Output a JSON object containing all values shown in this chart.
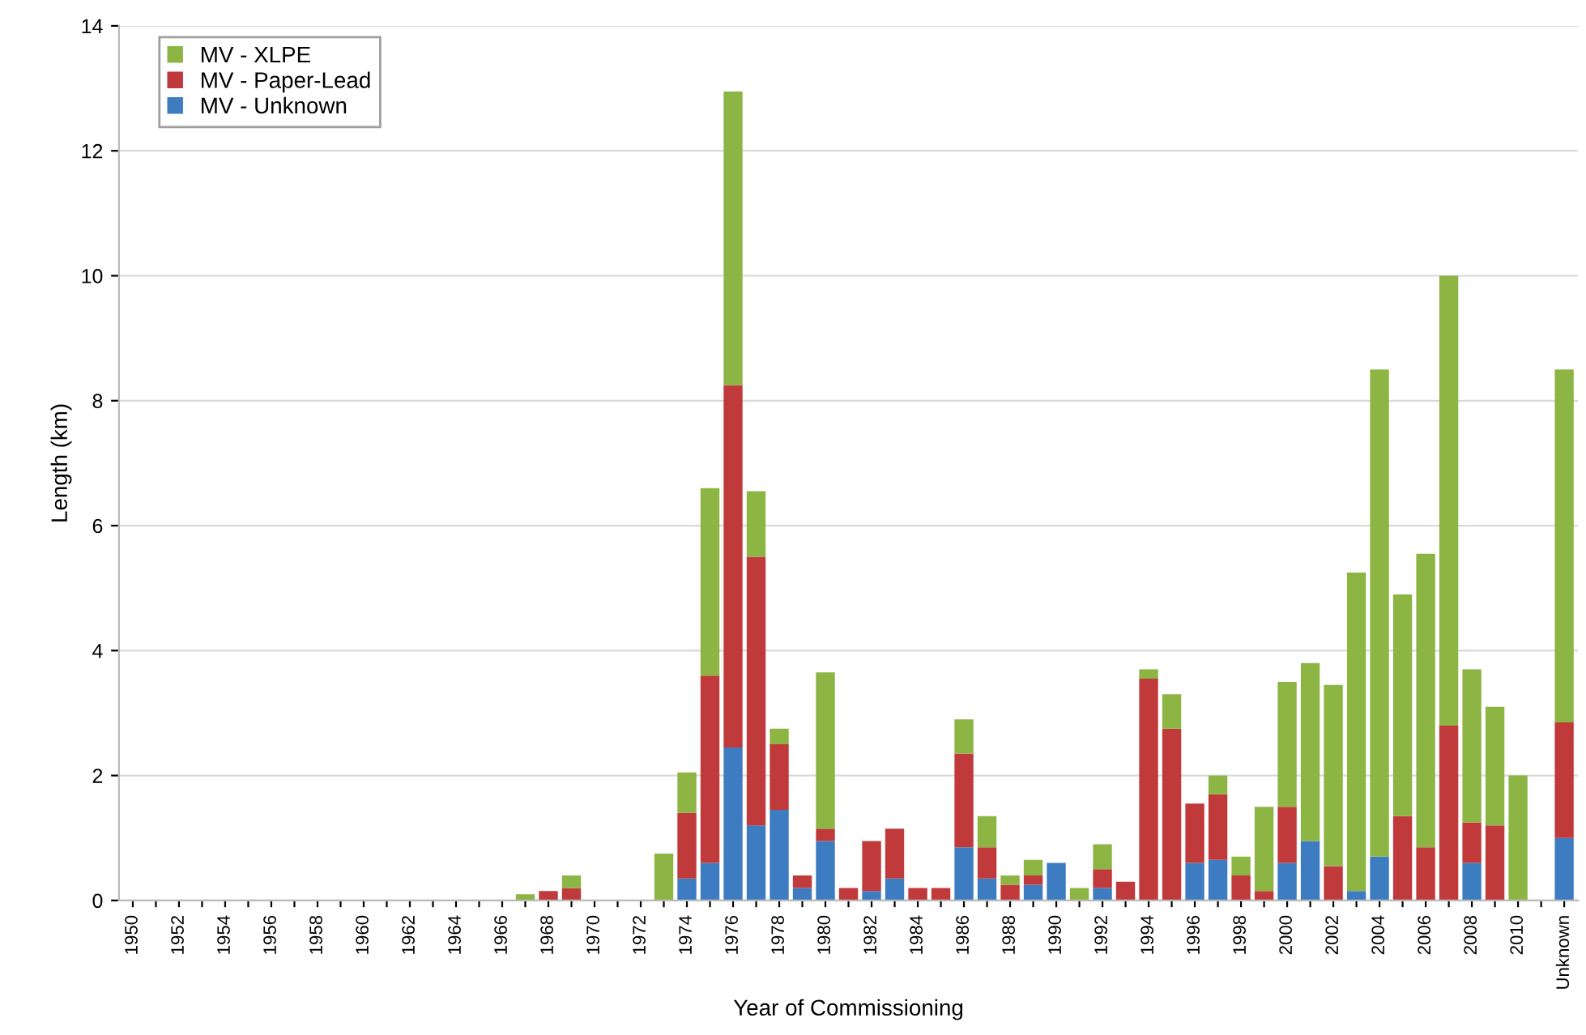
{
  "chart_data": {
    "type": "bar",
    "stacked": true,
    "xlabel": "Year of Commissioning",
    "ylabel": "Length (km)",
    "categories": [
      "1950",
      null,
      "1952",
      null,
      "1954",
      null,
      "1956",
      null,
      "1958",
      null,
      "1960",
      null,
      "1962",
      null,
      "1964",
      null,
      "1966",
      null,
      "1968",
      null,
      "1970",
      null,
      "1972",
      null,
      "1974",
      null,
      "1976",
      null,
      "1978",
      null,
      "1980",
      null,
      "1982",
      null,
      "1984",
      null,
      "1986",
      null,
      "1988",
      null,
      "1990",
      null,
      "1992",
      null,
      "1994",
      null,
      "1996",
      null,
      "1998",
      null,
      "2000",
      null,
      "2002",
      null,
      "2004",
      null,
      "2006",
      null,
      "2008",
      null,
      "2010",
      null,
      "Unknown"
    ],
    "series": [
      {
        "name": "MV - Unknown",
        "color": "#3d7cc0",
        "values": [
          0,
          0,
          0,
          0,
          0,
          0,
          0,
          0,
          0,
          0,
          0,
          0,
          0,
          0,
          0,
          0,
          0,
          0,
          0,
          0,
          0,
          0,
          0,
          0,
          0.35,
          0.6,
          2.45,
          1.2,
          1.45,
          0.2,
          0.95,
          0,
          0.15,
          0.35,
          0,
          0,
          0.85,
          0.35,
          0,
          0.25,
          0.6,
          0,
          0.2,
          0,
          0,
          0,
          0.6,
          0.65,
          0,
          0,
          0.6,
          0.95,
          0,
          0.15,
          0.7,
          0,
          0,
          0,
          0.6,
          0,
          0,
          null,
          1.0
        ]
      },
      {
        "name": "MV - Paper-Lead",
        "color": "#c0393b",
        "values": [
          0,
          0,
          0,
          0,
          0,
          0,
          0,
          0,
          0,
          0,
          0,
          0,
          0,
          0,
          0,
          0,
          0,
          0,
          0.15,
          0.2,
          0,
          0,
          0,
          0,
          1.05,
          3.0,
          5.8,
          4.3,
          1.05,
          0.2,
          0.2,
          0.2,
          0.8,
          0.8,
          0.2,
          0.2,
          1.5,
          0.5,
          0.25,
          0.15,
          0,
          0,
          0.3,
          0.3,
          3.55,
          2.75,
          0.95,
          1.05,
          0.4,
          0.15,
          0.9,
          0,
          0.55,
          0,
          0,
          1.35,
          0.85,
          2.8,
          0.65,
          1.2,
          0,
          null,
          1.85
        ]
      },
      {
        "name": "MV - XLPE",
        "color": "#8db544",
        "values": [
          0,
          0,
          0,
          0,
          0,
          0,
          0,
          0,
          0,
          0,
          0,
          0,
          0,
          0,
          0,
          0,
          0,
          0.1,
          0,
          0.2,
          0,
          0,
          0,
          0.75,
          0.65,
          3.0,
          4.7,
          1.05,
          0.25,
          0,
          2.5,
          0,
          0,
          0,
          0,
          0,
          0.55,
          0.5,
          0.15,
          0.25,
          0,
          0.2,
          0.4,
          0,
          0.15,
          0.55,
          0,
          0.3,
          0.3,
          1.35,
          2.0,
          2.85,
          2.9,
          5.1,
          7.8,
          3.55,
          4.7,
          7.2,
          2.45,
          1.9,
          2.0,
          null,
          5.65
        ]
      }
    ],
    "ylim": [
      0,
      14
    ],
    "yticks": [
      0,
      2,
      4,
      6,
      8,
      10,
      12,
      14
    ],
    "grid": "y",
    "legend": "top left"
  }
}
